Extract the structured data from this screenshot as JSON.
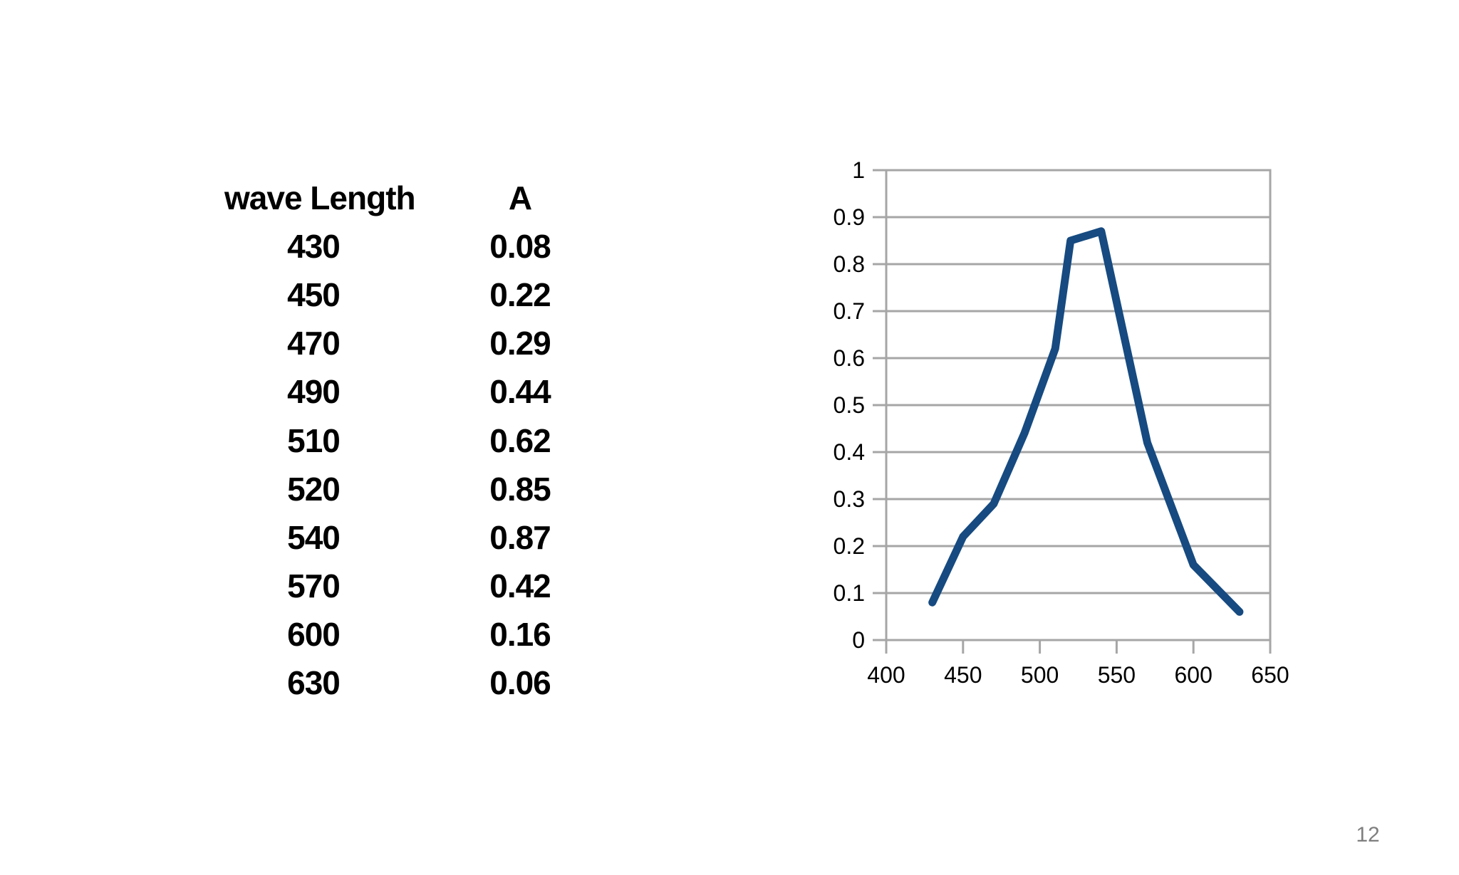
{
  "page": {
    "background": "#ffffff",
    "page_number": "12"
  },
  "table": {
    "headers": [
      "wave Length",
      "A"
    ],
    "rows": [
      [
        "430",
        "0.08"
      ],
      [
        "450",
        "0.22"
      ],
      [
        "470",
        "0.29"
      ],
      [
        "490",
        "0.44"
      ],
      [
        "510",
        "0.62"
      ],
      [
        "520",
        "0.85"
      ],
      [
        "540",
        "0.87"
      ],
      [
        "570",
        "0.42"
      ],
      [
        "600",
        "0.16"
      ],
      [
        "630",
        "0.06"
      ]
    ]
  },
  "chart_data": {
    "type": "line",
    "title": "",
    "xlabel": "",
    "ylabel": "",
    "x": [
      430,
      450,
      470,
      490,
      510,
      520,
      540,
      570,
      600,
      630
    ],
    "y": [
      0.08,
      0.22,
      0.29,
      0.44,
      0.62,
      0.85,
      0.87,
      0.42,
      0.16,
      0.06
    ],
    "xlim": [
      400,
      650
    ],
    "ylim": [
      0,
      1
    ],
    "x_tick_labels": [
      "400",
      "450",
      "500",
      "550",
      "600",
      "650"
    ],
    "x_tick_values": [
      400,
      450,
      500,
      550,
      600,
      650
    ],
    "y_tick_labels": [
      "0",
      "0.1",
      "0.2",
      "0.3",
      "0.4",
      "0.5",
      "0.6",
      "0.7",
      "0.8",
      "0.9",
      "1"
    ],
    "y_tick_values": [
      0,
      0.1,
      0.2,
      0.3,
      0.4,
      0.5,
      0.6,
      0.7,
      0.8,
      0.9,
      1
    ],
    "grid": "horizontal",
    "legend": "none",
    "line_color": "#164a80",
    "grid_color": "#a6a6a6",
    "tick_label_color": "#000000"
  }
}
